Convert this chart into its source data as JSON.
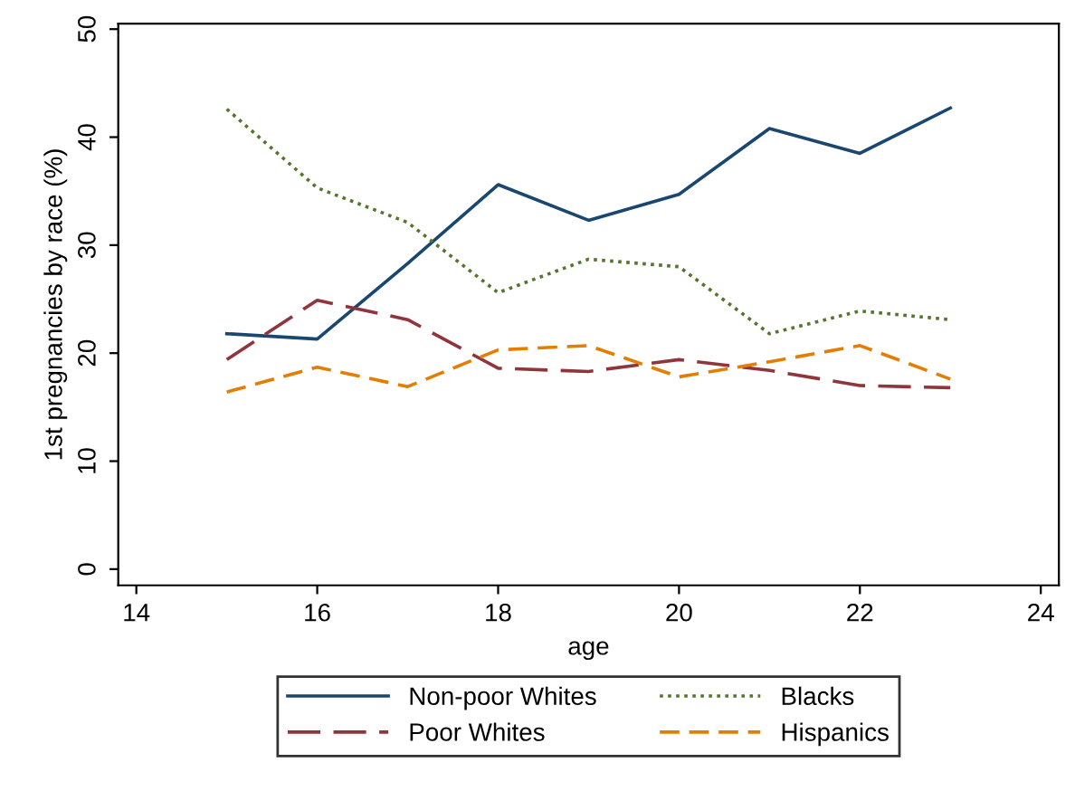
{
  "chart_data": {
    "type": "line",
    "xlabel": "age",
    "ylabel": "1st pregnancies by race (%)",
    "x": [
      15,
      16,
      17,
      18,
      19,
      20,
      21,
      22,
      23
    ],
    "series": [
      {
        "name": "Non-poor Whites",
        "color": "#1a476f",
        "line_style": "solid",
        "values": [
          21.8,
          21.3,
          28.3,
          35.6,
          32.3,
          34.7,
          40.8,
          38.5,
          42.7
        ]
      },
      {
        "name": "Poor Whites",
        "color": "#90353b",
        "line_style": "longdash",
        "values": [
          19.4,
          24.9,
          23.1,
          18.6,
          18.3,
          19.4,
          18.4,
          17.0,
          16.8
        ]
      },
      {
        "name": "Blacks",
        "color": "#55752f",
        "line_style": "dotted",
        "values": [
          42.6,
          35.3,
          32.1,
          25.6,
          28.7,
          28.0,
          21.8,
          23.9,
          23.1
        ]
      },
      {
        "name": "Hispanics",
        "color": "#e37e00",
        "line_style": "dashed",
        "values": [
          16.4,
          18.7,
          16.9,
          20.3,
          20.7,
          17.8,
          19.2,
          20.7,
          17.6
        ]
      }
    ],
    "xlim": [
      13.8,
      24.2
    ],
    "ylim": [
      -1.5,
      50.5
    ],
    "xticks": [
      14,
      16,
      18,
      20,
      22,
      24
    ],
    "yticks": [
      0,
      10,
      20,
      30,
      40,
      50
    ],
    "grid": false,
    "legend": "bottom",
    "marker": "none"
  }
}
